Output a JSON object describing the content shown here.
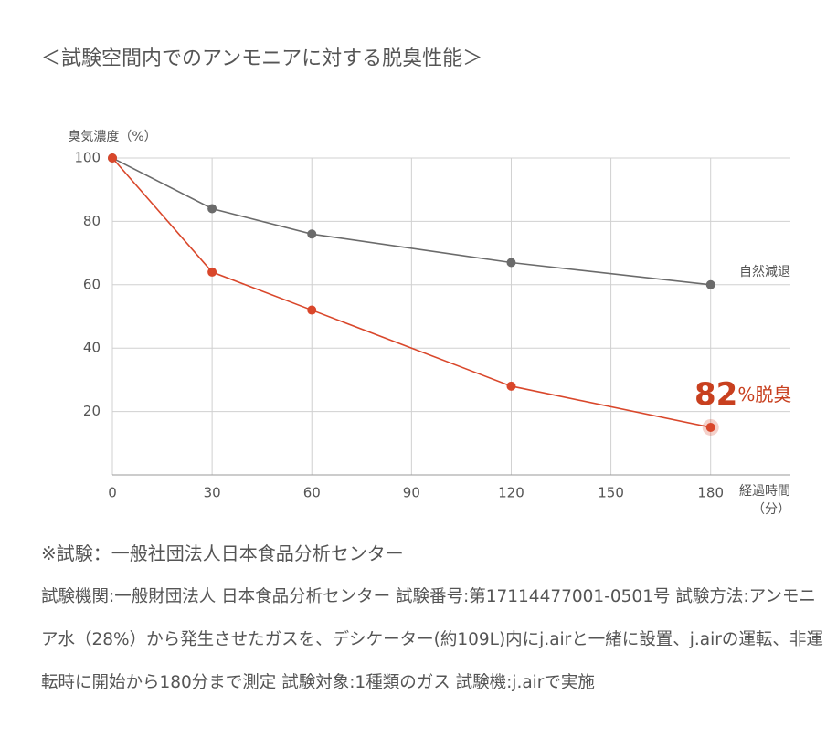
{
  "page": {
    "title": "＜試験空間内でのアンモニアに対する脱臭性能＞",
    "note": "※試験：一般社団法人日本食品分析センター",
    "description": "試験機関:一般財団法人 日本食品分析センター 試験番号:第17114477001-0501号 試験方法:アンモニア水（28%）から発生させたガスを、デシケーター(約109L)内にj.airと一緒に設置、j.airの運転、非運転時に開始から180分まで測定 試験対象:1種類のガス 試験機:j.airで実施"
  },
  "chart_data": {
    "type": "line",
    "ylabel": "臭気濃度（%）",
    "xlabel_lines": [
      "経過時間",
      "（分）"
    ],
    "x": [
      0,
      30,
      60,
      120,
      180
    ],
    "series": [
      {
        "name": "自然減退",
        "color": "#6b6b6b",
        "values": [
          100,
          84,
          76,
          67,
          60
        ]
      },
      {
        "color": "#d9472b",
        "values": [
          100,
          64,
          52,
          28,
          15
        ]
      }
    ],
    "annotation": {
      "number": "82",
      "unit": "%",
      "text": "脱臭",
      "color": "#c8401f"
    },
    "xlim": [
      0,
      204
    ],
    "xticks": [
      0,
      30,
      60,
      90,
      120,
      150,
      180
    ],
    "ylim": [
      0,
      100
    ],
    "yticks": [
      20,
      40,
      60,
      80,
      100
    ],
    "grid": true
  }
}
